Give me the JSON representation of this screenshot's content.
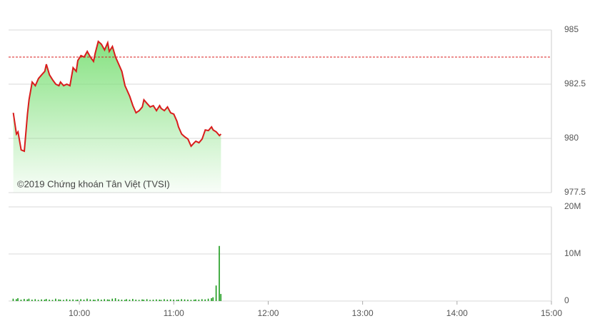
{
  "chart_data": [
    {
      "type": "line",
      "color": "#d91c1c",
      "fill": "#7fe07a",
      "annotation": "©2019 Chứng khoán Tân Việt (TVSI)",
      "reference_line": 983.75,
      "reference_color": "#d91c1c",
      "x": [
        558,
        560,
        561,
        563,
        565,
        567,
        568,
        570,
        572,
        574,
        576,
        578,
        579,
        581,
        583,
        585,
        587,
        588,
        590,
        592,
        594,
        596,
        598,
        599,
        601,
        603,
        605,
        607,
        609,
        610,
        612,
        614,
        616,
        618,
        619,
        621,
        623,
        625,
        627,
        629,
        630,
        632,
        634,
        636,
        638,
        640,
        641,
        643,
        645,
        647,
        649,
        651,
        652,
        654,
        656,
        658,
        660,
        662,
        663,
        665,
        667,
        669,
        671,
        673,
        674,
        676,
        678,
        680,
        682,
        684,
        685,
        687,
        689,
        690
      ],
      "values": [
        981.18,
        980.2,
        980.3,
        979.47,
        979.41,
        981.12,
        981.78,
        982.6,
        982.43,
        982.76,
        982.93,
        983.09,
        983.42,
        982.93,
        982.7,
        982.5,
        982.43,
        982.6,
        982.43,
        982.5,
        982.43,
        983.26,
        983.09,
        983.59,
        983.82,
        983.75,
        984.01,
        983.75,
        983.55,
        983.91,
        984.47,
        984.34,
        984.08,
        984.41,
        984.01,
        984.24,
        983.75,
        983.42,
        983.09,
        982.43,
        982.27,
        981.94,
        981.51,
        981.18,
        981.28,
        981.45,
        981.78,
        981.61,
        981.45,
        981.51,
        981.28,
        981.51,
        981.38,
        981.28,
        981.45,
        981.18,
        981.12,
        980.79,
        980.53,
        980.2,
        980.07,
        979.97,
        979.64,
        979.8,
        979.87,
        979.8,
        979.97,
        980.39,
        980.36,
        980.53,
        980.39,
        980.3,
        980.13,
        980.2
      ],
      "xlim": [
        555,
        900
      ],
      "ylim": [
        977.5,
        985
      ],
      "yticks": [
        977.5,
        980,
        982.5,
        985
      ],
      "grid": true
    },
    {
      "type": "bar",
      "color": "#1a9a1a",
      "x": [
        558,
        560,
        561,
        563,
        565,
        567,
        568,
        570,
        572,
        574,
        576,
        578,
        579,
        581,
        583,
        585,
        587,
        588,
        590,
        592,
        594,
        596,
        598,
        599,
        601,
        603,
        605,
        607,
        609,
        610,
        612,
        614,
        616,
        618,
        619,
        621,
        623,
        625,
        627,
        629,
        630,
        632,
        634,
        636,
        638,
        640,
        641,
        643,
        645,
        647,
        649,
        651,
        652,
        654,
        656,
        658,
        660,
        662,
        663,
        665,
        667,
        669,
        671,
        673,
        674,
        676,
        678,
        680,
        682,
        684,
        685,
        687,
        689,
        690
      ],
      "values": [
        500000,
        400000,
        600000,
        300000,
        450000,
        350000,
        500000,
        300000,
        400000,
        250000,
        350000,
        300000,
        450000,
        300000,
        250000,
        500000,
        350000,
        300000,
        250000,
        400000,
        300000,
        350000,
        250000,
        300000,
        400000,
        300000,
        500000,
        350000,
        300000,
        250000,
        450000,
        300000,
        400000,
        350000,
        300000,
        500000,
        600000,
        350000,
        300000,
        250000,
        400000,
        300000,
        450000,
        300000,
        250000,
        350000,
        300000,
        400000,
        250000,
        300000,
        350000,
        300000,
        250000,
        400000,
        300000,
        350000,
        300000,
        250000,
        300000,
        400000,
        350000,
        300000,
        250000,
        300000,
        350000,
        300000,
        400000,
        350000,
        500000,
        600000,
        800000,
        3300000,
        11700000,
        1500000
      ],
      "xlim": [
        555,
        900
      ],
      "ylim": [
        0,
        20000000
      ],
      "yticks": [
        0,
        {
          "value": 10000000,
          "label": "10M"
        },
        {
          "value": 20000000,
          "label": "20M"
        }
      ],
      "xticks": [
        {
          "value": 600,
          "label": "10:00"
        },
        {
          "value": 660,
          "label": "11:00"
        },
        {
          "value": 720,
          "label": "12:00"
        },
        {
          "value": 780,
          "label": "13:00"
        },
        {
          "value": 840,
          "label": "14:00"
        },
        {
          "value": 900,
          "label": "15:00"
        }
      ],
      "grid": true
    }
  ]
}
